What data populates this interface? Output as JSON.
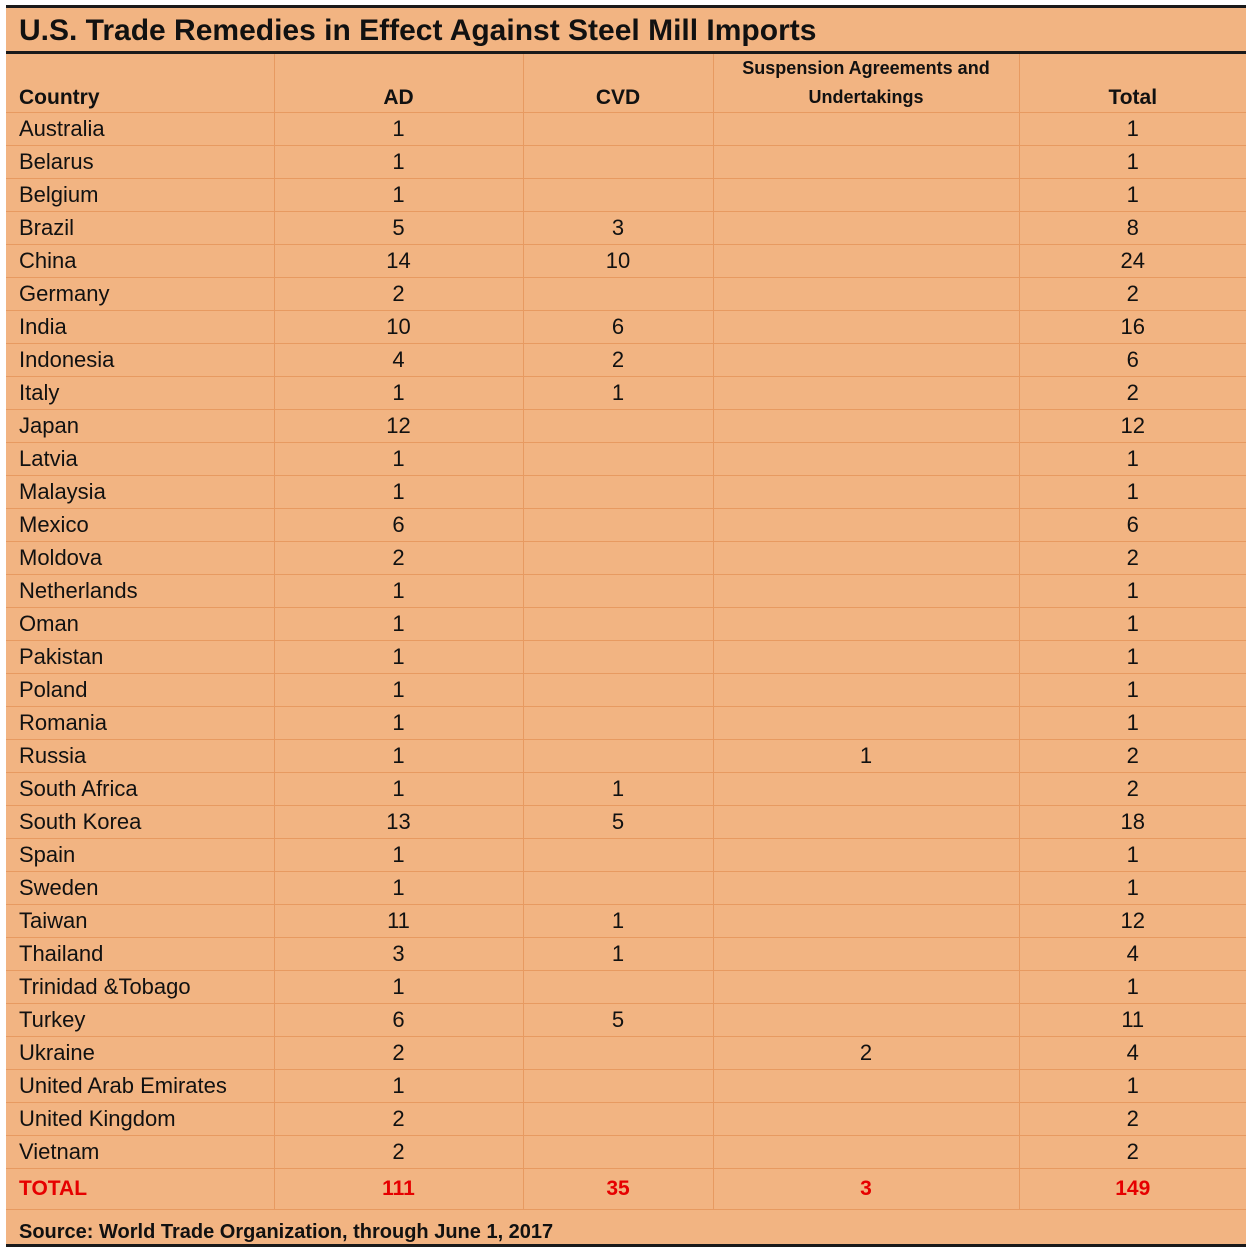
{
  "title": "U.S. Trade Remedies in Effect Against Steel Mill Imports",
  "headers": {
    "country": "Country",
    "ad": "AD",
    "cvd": "CVD",
    "suspension": "Suspension Agreements and Undertakings",
    "total": "Total"
  },
  "rows": [
    {
      "country": "Australia",
      "ad": "1",
      "cvd": "",
      "sa": "",
      "total": "1"
    },
    {
      "country": "Belarus",
      "ad": "1",
      "cvd": "",
      "sa": "",
      "total": "1"
    },
    {
      "country": "Belgium",
      "ad": "1",
      "cvd": "",
      "sa": "",
      "total": "1"
    },
    {
      "country": "Brazil",
      "ad": "5",
      "cvd": "3",
      "sa": "",
      "total": "8"
    },
    {
      "country": "China",
      "ad": "14",
      "cvd": "10",
      "sa": "",
      "total": "24"
    },
    {
      "country": "Germany",
      "ad": "2",
      "cvd": "",
      "sa": "",
      "total": "2"
    },
    {
      "country": "India",
      "ad": "10",
      "cvd": "6",
      "sa": "",
      "total": "16"
    },
    {
      "country": "Indonesia",
      "ad": "4",
      "cvd": "2",
      "sa": "",
      "total": "6"
    },
    {
      "country": "Italy",
      "ad": "1",
      "cvd": "1",
      "sa": "",
      "total": "2"
    },
    {
      "country": "Japan",
      "ad": "12",
      "cvd": "",
      "sa": "",
      "total": "12"
    },
    {
      "country": "Latvia",
      "ad": "1",
      "cvd": "",
      "sa": "",
      "total": "1"
    },
    {
      "country": "Malaysia",
      "ad": "1",
      "cvd": "",
      "sa": "",
      "total": "1"
    },
    {
      "country": "Mexico",
      "ad": "6",
      "cvd": "",
      "sa": "",
      "total": "6"
    },
    {
      "country": "Moldova",
      "ad": "2",
      "cvd": "",
      "sa": "",
      "total": "2"
    },
    {
      "country": "Netherlands",
      "ad": "1",
      "cvd": "",
      "sa": "",
      "total": "1"
    },
    {
      "country": "Oman",
      "ad": "1",
      "cvd": "",
      "sa": "",
      "total": "1"
    },
    {
      "country": "Pakistan",
      "ad": "1",
      "cvd": "",
      "sa": "",
      "total": "1"
    },
    {
      "country": "Poland",
      "ad": "1",
      "cvd": "",
      "sa": "",
      "total": "1"
    },
    {
      "country": "Romania",
      "ad": "1",
      "cvd": "",
      "sa": "",
      "total": "1"
    },
    {
      "country": "Russia",
      "ad": "1",
      "cvd": "",
      "sa": "1",
      "total": "2"
    },
    {
      "country": "South Africa",
      "ad": "1",
      "cvd": "1",
      "sa": "",
      "total": "2"
    },
    {
      "country": "South Korea",
      "ad": "13",
      "cvd": "5",
      "sa": "",
      "total": "18"
    },
    {
      "country": "Spain",
      "ad": "1",
      "cvd": "",
      "sa": "",
      "total": "1"
    },
    {
      "country": "Sweden",
      "ad": "1",
      "cvd": "",
      "sa": "",
      "total": "1"
    },
    {
      "country": "Taiwan",
      "ad": "11",
      "cvd": "1",
      "sa": "",
      "total": "12"
    },
    {
      "country": "Thailand",
      "ad": "3",
      "cvd": "1",
      "sa": "",
      "total": "4"
    },
    {
      "country": "Trinidad &Tobago",
      "ad": "1",
      "cvd": "",
      "sa": "",
      "total": "1"
    },
    {
      "country": "Turkey",
      "ad": "6",
      "cvd": "5",
      "sa": "",
      "total": "11"
    },
    {
      "country": "Ukraine",
      "ad": "2",
      "cvd": "",
      "sa": "2",
      "total": "4"
    },
    {
      "country": "United Arab Emirates",
      "ad": "1",
      "cvd": "",
      "sa": "",
      "total": "1"
    },
    {
      "country": "United Kingdom",
      "ad": "2",
      "cvd": "",
      "sa": "",
      "total": "2"
    },
    {
      "country": "Vietnam",
      "ad": "2",
      "cvd": "",
      "sa": "",
      "total": "2"
    }
  ],
  "totals": {
    "label": "TOTAL",
    "ad": "111",
    "cvd": "35",
    "sa": "3",
    "total": "149"
  },
  "source": "Source: World Trade Organization, through June 1, 2017",
  "colors": {
    "background": "#f2b482",
    "gridline": "#e79a61",
    "total_text": "#e60000",
    "border": "#1a1a1a"
  }
}
